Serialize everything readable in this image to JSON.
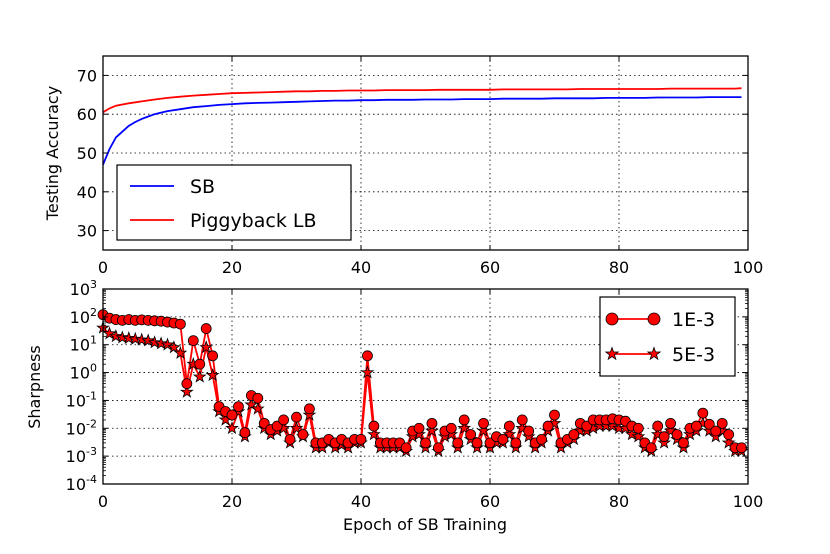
{
  "chart_data": [
    {
      "type": "line",
      "xlabel": "",
      "ylabel": "Testing Accuracy",
      "xlim": [
        0,
        100
      ],
      "ylim": [
        25,
        75
      ],
      "x_ticks": [
        "0",
        "20",
        "40",
        "60",
        "80",
        "100"
      ],
      "y_ticks": [
        "30",
        "40",
        "50",
        "60",
        "70"
      ],
      "grid": true,
      "legend_position": "lower-left",
      "series": [
        {
          "name": "SB",
          "color": "#0000ff",
          "points": [
            [
              0,
              47
            ],
            [
              1,
              51
            ],
            [
              2,
              54
            ],
            [
              3,
              55.5
            ],
            [
              4,
              57
            ],
            [
              5,
              58
            ],
            [
              6,
              58.8
            ],
            [
              7,
              59.4
            ],
            [
              8,
              60
            ],
            [
              9,
              60.4
            ],
            [
              10,
              60.8
            ],
            [
              12,
              61.3
            ],
            [
              14,
              61.8
            ],
            [
              16,
              62.1
            ],
            [
              18,
              62.4
            ],
            [
              20,
              62.6
            ],
            [
              22,
              62.8
            ],
            [
              24,
              62.9
            ],
            [
              26,
              63
            ],
            [
              28,
              63.1
            ],
            [
              30,
              63.2
            ],
            [
              32,
              63.3
            ],
            [
              34,
              63.4
            ],
            [
              36,
              63.5
            ],
            [
              38,
              63.5
            ],
            [
              40,
              63.6
            ],
            [
              42,
              63.6
            ],
            [
              44,
              63.7
            ],
            [
              46,
              63.7
            ],
            [
              48,
              63.7
            ],
            [
              50,
              63.8
            ],
            [
              52,
              63.8
            ],
            [
              54,
              63.8
            ],
            [
              56,
              63.9
            ],
            [
              58,
              63.9
            ],
            [
              60,
              63.9
            ],
            [
              62,
              64
            ],
            [
              64,
              64
            ],
            [
              66,
              64
            ],
            [
              68,
              64
            ],
            [
              70,
              64.1
            ],
            [
              72,
              64.1
            ],
            [
              74,
              64.1
            ],
            [
              76,
              64.1
            ],
            [
              78,
              64.2
            ],
            [
              80,
              64.2
            ],
            [
              82,
              64.2
            ],
            [
              84,
              64.2
            ],
            [
              86,
              64.3
            ],
            [
              88,
              64.3
            ],
            [
              90,
              64.3
            ],
            [
              92,
              64.3
            ],
            [
              94,
              64.4
            ],
            [
              96,
              64.4
            ],
            [
              98,
              64.4
            ],
            [
              99,
              64.4
            ]
          ]
        },
        {
          "name": "Piggyback LB",
          "color": "#ff0000",
          "points": [
            [
              0,
              60.5
            ],
            [
              1,
              61.5
            ],
            [
              2,
              62.2
            ],
            [
              4,
              62.8
            ],
            [
              6,
              63.3
            ],
            [
              8,
              63.8
            ],
            [
              10,
              64.2
            ],
            [
              12,
              64.5
            ],
            [
              14,
              64.8
            ],
            [
              16,
              65
            ],
            [
              18,
              65.2
            ],
            [
              20,
              65.4
            ],
            [
              22,
              65.5
            ],
            [
              24,
              65.6
            ],
            [
              26,
              65.7
            ],
            [
              28,
              65.8
            ],
            [
              30,
              65.9
            ],
            [
              32,
              65.9
            ],
            [
              34,
              66
            ],
            [
              36,
              66
            ],
            [
              38,
              66.1
            ],
            [
              40,
              66.1
            ],
            [
              42,
              66.1
            ],
            [
              44,
              66.2
            ],
            [
              46,
              66.2
            ],
            [
              48,
              66.2
            ],
            [
              50,
              66.2
            ],
            [
              52,
              66.3
            ],
            [
              54,
              66.3
            ],
            [
              56,
              66.3
            ],
            [
              58,
              66.3
            ],
            [
              60,
              66.3
            ],
            [
              62,
              66.4
            ],
            [
              64,
              66.4
            ],
            [
              66,
              66.4
            ],
            [
              68,
              66.4
            ],
            [
              70,
              66.4
            ],
            [
              72,
              66.4
            ],
            [
              74,
              66.5
            ],
            [
              76,
              66.5
            ],
            [
              78,
              66.5
            ],
            [
              80,
              66.5
            ],
            [
              82,
              66.5
            ],
            [
              84,
              66.5
            ],
            [
              86,
              66.5
            ],
            [
              88,
              66.6
            ],
            [
              90,
              66.6
            ],
            [
              92,
              66.6
            ],
            [
              94,
              66.6
            ],
            [
              96,
              66.6
            ],
            [
              98,
              66.6
            ],
            [
              99,
              66.7
            ]
          ]
        }
      ]
    },
    {
      "type": "line",
      "xlabel": "Epoch of SB Training",
      "ylabel": "Sharpness",
      "xlim": [
        0,
        100
      ],
      "yscale": "log",
      "ylim_exponent": [
        -4,
        3
      ],
      "x_ticks": [
        "0",
        "20",
        "40",
        "60",
        "80",
        "100"
      ],
      "y_tick_base": "10",
      "y_tick_exponents": [
        "-4",
        "-3",
        "-2",
        "-1",
        "0",
        "1",
        "2",
        "3"
      ],
      "grid": true,
      "legend_position": "upper-right",
      "series": [
        {
          "name": "1E-3",
          "color": "#ff0000",
          "marker": "circle",
          "x": [
            0,
            1,
            2,
            3,
            4,
            5,
            6,
            7,
            8,
            9,
            10,
            11,
            12,
            13,
            14,
            15,
            16,
            17,
            18,
            19,
            20,
            21,
            22,
            23,
            24,
            25,
            26,
            27,
            28,
            29,
            30,
            31,
            32,
            33,
            34,
            35,
            36,
            37,
            38,
            39,
            40,
            41,
            42,
            43,
            44,
            45,
            46,
            47,
            48,
            49,
            50,
            51,
            52,
            53,
            54,
            55,
            56,
            57,
            58,
            59,
            60,
            61,
            62,
            63,
            64,
            65,
            66,
            67,
            68,
            69,
            70,
            71,
            72,
            73,
            74,
            75,
            76,
            77,
            78,
            79,
            80,
            81,
            82,
            83,
            84,
            85,
            86,
            87,
            88,
            89,
            90,
            91,
            92,
            93,
            94,
            95,
            96,
            97,
            98,
            99
          ],
          "y": [
            120,
            90,
            80,
            75,
            80,
            75,
            78,
            75,
            72,
            70,
            65,
            60,
            55,
            0.4,
            14,
            2,
            38,
            4,
            0.06,
            0.04,
            0.03,
            0.06,
            0.007,
            0.15,
            0.12,
            0.015,
            0.009,
            0.012,
            0.02,
            0.004,
            0.025,
            0.006,
            0.05,
            0.003,
            0.003,
            0.004,
            0.003,
            0.004,
            0.003,
            0.004,
            0.004,
            4,
            0.012,
            0.003,
            0.003,
            0.003,
            0.003,
            0.002,
            0.008,
            0.01,
            0.003,
            0.015,
            0.002,
            0.008,
            0.01,
            0.003,
            0.02,
            0.006,
            0.003,
            0.015,
            0.003,
            0.005,
            0.004,
            0.012,
            0.003,
            0.02,
            0.008,
            0.003,
            0.004,
            0.012,
            0.03,
            0.003,
            0.004,
            0.006,
            0.015,
            0.012,
            0.02,
            0.02,
            0.02,
            0.022,
            0.02,
            0.018,
            0.012,
            0.01,
            0.003,
            0.002,
            0.012,
            0.005,
            0.015,
            0.006,
            0.003,
            0.01,
            0.012,
            0.035,
            0.014,
            0.008,
            0.015,
            0.006,
            0.002,
            0.002
          ]
        },
        {
          "name": "5E-3",
          "color": "#ff0000",
          "marker": "star",
          "x": [
            0,
            1,
            2,
            3,
            4,
            5,
            6,
            7,
            8,
            9,
            10,
            11,
            12,
            13,
            14,
            15,
            16,
            17,
            18,
            19,
            20,
            21,
            22,
            23,
            24,
            25,
            26,
            27,
            28,
            29,
            30,
            31,
            32,
            33,
            34,
            35,
            36,
            37,
            38,
            39,
            40,
            41,
            42,
            43,
            44,
            45,
            46,
            47,
            48,
            49,
            50,
            51,
            52,
            53,
            54,
            55,
            56,
            57,
            58,
            59,
            60,
            61,
            62,
            63,
            64,
            65,
            66,
            67,
            68,
            69,
            70,
            71,
            72,
            73,
            74,
            75,
            76,
            77,
            78,
            79,
            80,
            81,
            82,
            83,
            84,
            85,
            86,
            87,
            88,
            89,
            90,
            91,
            92,
            93,
            94,
            95,
            96,
            97,
            98,
            99
          ],
          "y": [
            40,
            25,
            20,
            18,
            17,
            16,
            15,
            14,
            12,
            11,
            10,
            8,
            5,
            0.2,
            2,
            0.7,
            8,
            0.8,
            0.04,
            0.02,
            0.01,
            0.04,
            0.005,
            0.07,
            0.05,
            0.01,
            0.006,
            0.008,
            0.01,
            0.003,
            0.01,
            0.005,
            0.03,
            0.002,
            0.002,
            0.003,
            0.002,
            0.0025,
            0.002,
            0.003,
            0.003,
            1,
            0.006,
            0.002,
            0.002,
            0.002,
            0.002,
            0.0015,
            0.005,
            0.006,
            0.002,
            0.008,
            0.0015,
            0.005,
            0.006,
            0.002,
            0.01,
            0.004,
            0.002,
            0.008,
            0.002,
            0.003,
            0.003,
            0.006,
            0.002,
            0.01,
            0.005,
            0.002,
            0.003,
            0.008,
            0.015,
            0.002,
            0.003,
            0.004,
            0.008,
            0.008,
            0.01,
            0.012,
            0.012,
            0.012,
            0.01,
            0.01,
            0.006,
            0.005,
            0.002,
            0.0015,
            0.006,
            0.003,
            0.008,
            0.004,
            0.002,
            0.006,
            0.008,
            0.015,
            0.008,
            0.005,
            0.008,
            0.003,
            0.0015,
            0.0015
          ]
        }
      ]
    }
  ]
}
